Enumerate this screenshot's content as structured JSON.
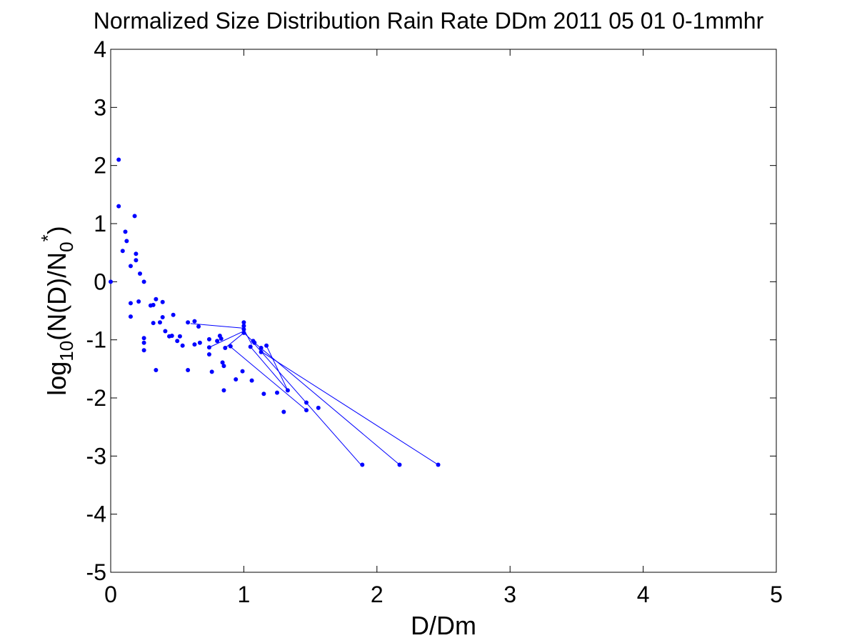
{
  "chart_data": {
    "type": "scatter",
    "title": "Normalized Size Distribution Rain Rate DDm 2011 05 01 0-1mmhr",
    "xlabel": "D/Dm",
    "ylabel": {
      "prefix": "log",
      "prefix_sub": "10",
      "middle": "(N(D)/N",
      "n_sub": "0",
      "n_sup": "*",
      "suffix": ")"
    },
    "xlim": [
      0,
      5
    ],
    "ylim": [
      -5,
      4
    ],
    "xticks": [
      "0",
      "1",
      "2",
      "3",
      "4",
      "5"
    ],
    "yticks": [
      "-5",
      "-4",
      "-3",
      "-2",
      "-1",
      "0",
      "1",
      "2",
      "3",
      "4"
    ],
    "grid": false,
    "series_color": "#0000ff",
    "points": [
      [
        0.0,
        0.0
      ],
      [
        0.06,
        2.1
      ],
      [
        0.06,
        1.3
      ],
      [
        0.09,
        0.53
      ],
      [
        0.11,
        0.86
      ],
      [
        0.12,
        0.7
      ],
      [
        0.15,
        0.27
      ],
      [
        0.15,
        -0.37
      ],
      [
        0.15,
        -0.6
      ],
      [
        0.18,
        1.13
      ],
      [
        0.19,
        0.37
      ],
      [
        0.19,
        0.48
      ],
      [
        0.21,
        -0.34
      ],
      [
        0.22,
        0.14
      ],
      [
        0.25,
        0.0
      ],
      [
        0.25,
        -0.97
      ],
      [
        0.25,
        -1.05
      ],
      [
        0.25,
        -1.18
      ],
      [
        0.3,
        -0.41
      ],
      [
        0.32,
        -0.4
      ],
      [
        0.32,
        -0.71
      ],
      [
        0.34,
        -0.3
      ],
      [
        0.34,
        -1.52
      ],
      [
        0.37,
        -0.7
      ],
      [
        0.39,
        -0.35
      ],
      [
        0.39,
        -0.61
      ],
      [
        0.41,
        -0.85
      ],
      [
        0.44,
        -0.94
      ],
      [
        0.46,
        -0.93
      ],
      [
        0.47,
        -0.57
      ],
      [
        0.5,
        -1.02
      ],
      [
        0.52,
        -0.94
      ],
      [
        0.54,
        -1.1
      ],
      [
        0.58,
        -0.7
      ],
      [
        0.58,
        -1.52
      ],
      [
        0.63,
        -0.68
      ],
      [
        0.63,
        -1.08
      ],
      [
        0.66,
        -0.77
      ],
      [
        0.67,
        -1.05
      ],
      [
        0.74,
        -0.99
      ],
      [
        0.74,
        -1.13
      ],
      [
        0.74,
        -1.25
      ],
      [
        0.76,
        -1.55
      ],
      [
        0.8,
        -1.02
      ],
      [
        0.82,
        -0.93
      ],
      [
        0.83,
        -0.98
      ],
      [
        0.84,
        -1.39
      ],
      [
        0.85,
        -1.45
      ],
      [
        0.85,
        -1.87
      ],
      [
        0.86,
        -1.14
      ],
      [
        0.9,
        -1.11
      ],
      [
        0.94,
        -1.68
      ],
      [
        0.99,
        -1.54
      ],
      [
        1.0,
        -0.7
      ],
      [
        1.0,
        -0.76
      ],
      [
        1.0,
        -0.82
      ],
      [
        1.0,
        -0.88
      ],
      [
        1.05,
        -1.12
      ],
      [
        1.06,
        -1.7
      ],
      [
        1.07,
        -1.02
      ],
      [
        1.08,
        -1.05
      ],
      [
        1.13,
        -1.14
      ],
      [
        1.13,
        -1.21
      ],
      [
        1.15,
        -1.93
      ],
      [
        1.17,
        -1.1
      ],
      [
        1.25,
        -1.91
      ],
      [
        1.3,
        -2.24
      ],
      [
        1.33,
        -1.87
      ],
      [
        1.47,
        -2.08
      ],
      [
        1.47,
        -2.21
      ],
      [
        1.56,
        -2.17
      ],
      [
        1.89,
        -3.15
      ],
      [
        2.17,
        -3.15
      ],
      [
        2.46,
        -3.15
      ]
    ],
    "lines": [
      [
        [
          0.6,
          -0.72
        ],
        [
          1.0,
          -0.8
        ]
      ],
      [
        [
          0.74,
          -1.13
        ],
        [
          1.0,
          -0.85
        ]
      ],
      [
        [
          0.86,
          -1.14
        ],
        [
          1.0,
          -0.88
        ]
      ],
      [
        [
          1.0,
          -0.82
        ],
        [
          1.06,
          -1.08
        ]
      ],
      [
        [
          1.0,
          -0.88
        ],
        [
          1.08,
          -1.05
        ]
      ],
      [
        [
          1.06,
          -1.02
        ],
        [
          1.88,
          -3.15
        ]
      ],
      [
        [
          1.08,
          -1.05
        ],
        [
          2.17,
          -3.15
        ]
      ],
      [
        [
          1.13,
          -1.2
        ],
        [
          2.46,
          -3.15
        ]
      ],
      [
        [
          1.17,
          -1.1
        ],
        [
          1.33,
          -1.87
        ]
      ],
      [
        [
          0.9,
          -1.12
        ],
        [
          1.47,
          -2.21
        ]
      ],
      [
        [
          1.05,
          -1.12
        ],
        [
          1.33,
          -1.87
        ]
      ]
    ]
  }
}
